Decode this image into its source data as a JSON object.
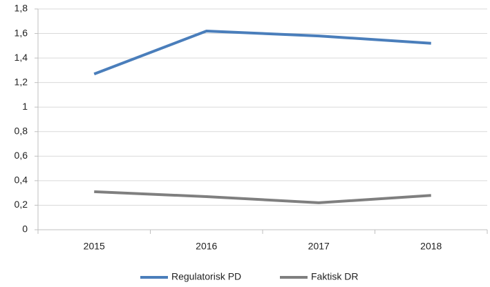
{
  "chart_data": {
    "type": "line",
    "categories": [
      "2015",
      "2016",
      "2017",
      "2018"
    ],
    "series": [
      {
        "name": "Regulatorisk PD",
        "color": "#4a7ebb",
        "values": [
          1.27,
          1.62,
          1.58,
          1.52
        ]
      },
      {
        "name": "Faktisk DR",
        "color": "#7f7f7f",
        "values": [
          0.31,
          0.27,
          0.22,
          0.28
        ]
      }
    ],
    "ylim": [
      0,
      1.8
    ],
    "yticks": [
      0,
      {
        "value": 0.2,
        "label": "0,2"
      },
      {
        "value": 0.4,
        "label": "0,4"
      },
      {
        "value": 0.6,
        "label": "0,6"
      },
      {
        "value": 0.8,
        "label": "0,8"
      },
      1,
      {
        "value": 1.2,
        "label": "1,2"
      },
      {
        "value": 1.4,
        "label": "1,4"
      },
      {
        "value": 1.6,
        "label": "1,6"
      },
      {
        "value": 1.8,
        "label": "1,8"
      }
    ],
    "grid": true,
    "legend": "bottom"
  }
}
